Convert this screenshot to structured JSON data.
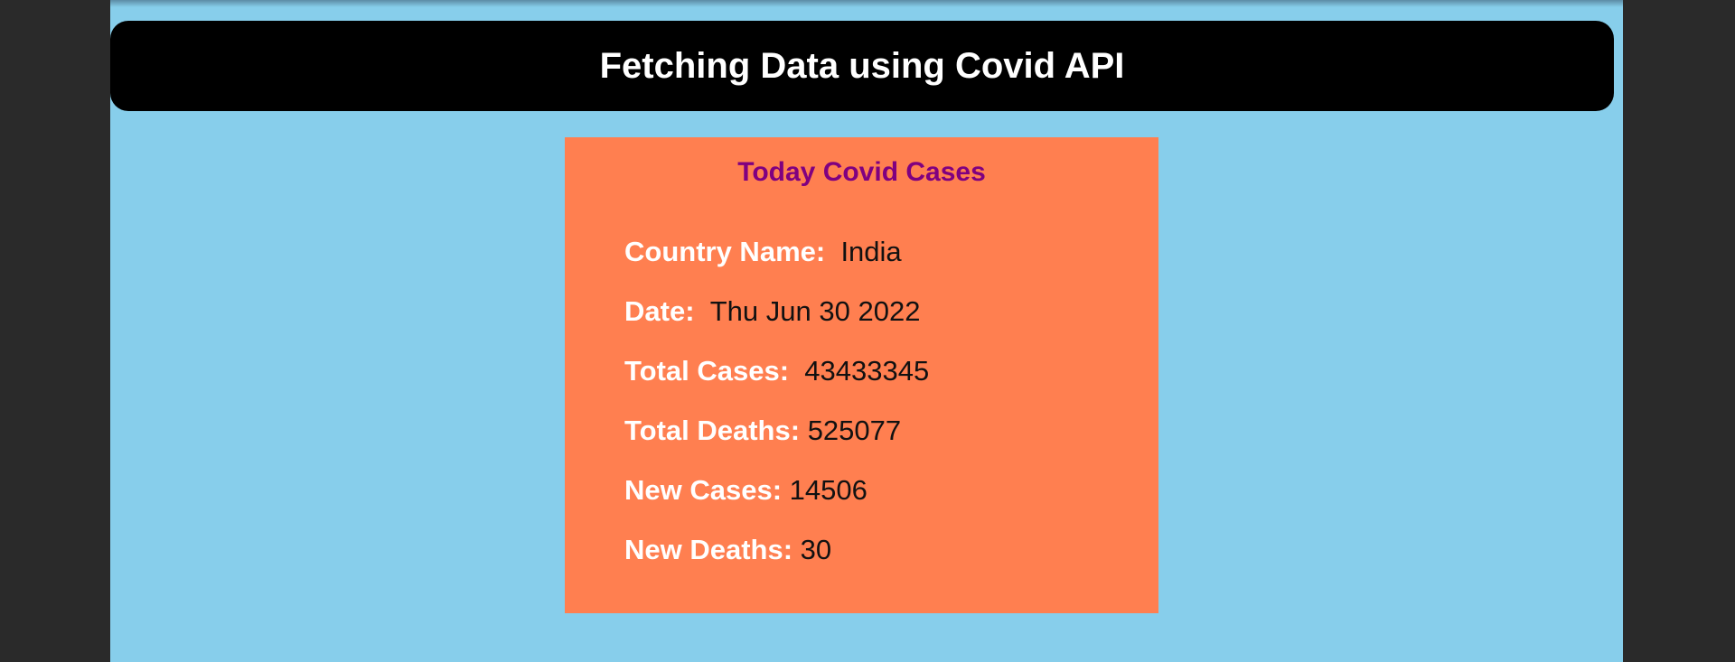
{
  "header": {
    "title": "Fetching Data using Covid API"
  },
  "card": {
    "title": "Today Covid Cases",
    "rows": [
      {
        "label": "Country Name:",
        "value": "India"
      },
      {
        "label": "Date:",
        "value": "Thu Jun 30 2022"
      },
      {
        "label": "Total Cases:",
        "value": "43433345"
      },
      {
        "label": "Total Deaths:",
        "value": "525077"
      },
      {
        "label": "New Cases:",
        "value": "14506"
      },
      {
        "label": "New Deaths:",
        "value": "30"
      }
    ]
  },
  "colors": {
    "page_background": "#87ceeb",
    "header_background": "#000000",
    "card_background": "#ff7f50",
    "card_title": "#800080",
    "label_text": "#ffffff",
    "value_text": "#111111",
    "outer_background": "#2a2a2a"
  }
}
